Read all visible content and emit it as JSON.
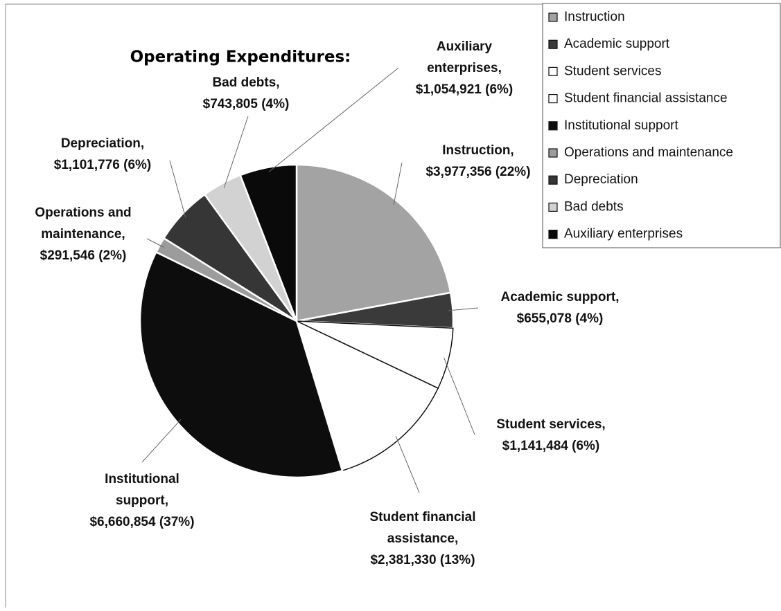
{
  "chart_data": {
    "type": "pie",
    "title": "Operating Expenditures:",
    "categories": [
      "Instruction",
      "Academic support",
      "Student services",
      "Student financial assistance",
      "Institutional support",
      "Operations and maintenance",
      "Depreciation",
      "Bad debts",
      "Auxiliary enterprises"
    ],
    "values": [
      3977356,
      655078,
      1141484,
      2381330,
      6660854,
      291546,
      1101776,
      743805,
      1054921
    ],
    "value_labels": [
      "Instruction,\n$3,977,356 (22%)",
      "Academic support,\n$655,078 (4%)",
      "Student services,\n$1,141,484 (6%)",
      "Student financial\nassistance,\n$2,381,330 (13%)",
      "Institutional\nsupport,\n$6,660,854 (37%)",
      "Operations and\nmaintenance,\n$291,546 (2%)",
      "Depreciation,\n$1,101,776 (6%)",
      "Bad debts,\n$743,805 (4%)",
      "Auxiliary\nenterprises,\n$1,054,921 (6%)"
    ],
    "colors": [
      "#a3a3a3",
      "#3a3a3a",
      "#ffffff",
      "#ffffff",
      "#0d0d0d",
      "#9c9c9c",
      "#363636",
      "#d2d2d2",
      "#0a0a0a"
    ],
    "legend": "top-right"
  }
}
